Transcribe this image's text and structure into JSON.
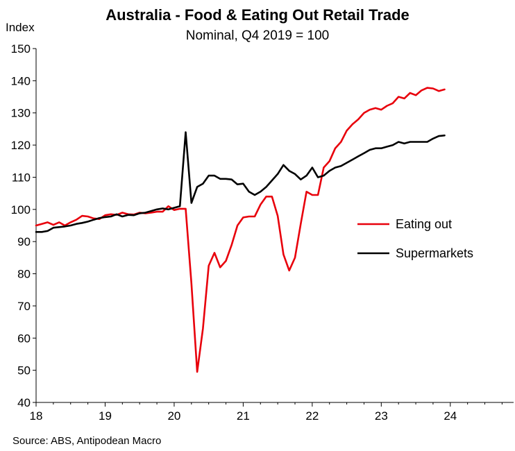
{
  "chart_data": {
    "type": "line",
    "title": "Australia - Food & Eating Out Retail Trade",
    "subtitle": "Nominal, Q4 2019 = 100",
    "ylabel": "Index",
    "xlabel": "",
    "source": "Source: ABS, Antipodean Macro",
    "ylim": [
      40,
      150
    ],
    "yticks": [
      40,
      50,
      60,
      70,
      80,
      90,
      100,
      110,
      120,
      130,
      140,
      150
    ],
    "xlim": [
      2018.0,
      2024.917
    ],
    "xticks": [
      {
        "label": "18",
        "value": 2018
      },
      {
        "label": "19",
        "value": 2019
      },
      {
        "label": "20",
        "value": 2020
      },
      {
        "label": "21",
        "value": 2021
      },
      {
        "label": "22",
        "value": 2022
      },
      {
        "label": "23",
        "value": 2023
      },
      {
        "label": "24",
        "value": 2024
      }
    ],
    "grid": false,
    "legend_position": "right-middle",
    "series": [
      {
        "name": "Eating out",
        "color": "#e8000b",
        "values": [
          95.0,
          95.5,
          96.0,
          95.2,
          96.0,
          95.0,
          96.0,
          96.8,
          98.0,
          97.8,
          97.2,
          97.0,
          98.2,
          98.5,
          98.3,
          99.0,
          98.5,
          98.4,
          99.0,
          98.8,
          99.0,
          99.3,
          99.3,
          101.0,
          99.8,
          100.2,
          100.2,
          77.0,
          49.5,
          63.0,
          82.5,
          86.5,
          82.0,
          84.0,
          89.0,
          95.0,
          97.5,
          97.8,
          97.8,
          101.5,
          104.0,
          104.0,
          98.0,
          86.0,
          81.0,
          85.0,
          95.5,
          105.5,
          104.5,
          104.5,
          113.0,
          115.0,
          119.0,
          121.0,
          124.5,
          126.5,
          128.0,
          130.0,
          131.0,
          131.5,
          131.0,
          132.2,
          133.0,
          135.0,
          134.5,
          136.2,
          135.5,
          137.0,
          137.8,
          137.6,
          136.8,
          137.3
        ]
      },
      {
        "name": "Supermarkets",
        "color": "#000000",
        "values": [
          93.0,
          93.0,
          93.3,
          94.3,
          94.5,
          94.7,
          95.0,
          95.5,
          95.8,
          96.2,
          96.8,
          97.3,
          97.6,
          97.8,
          98.5,
          97.8,
          98.3,
          98.2,
          98.8,
          99.0,
          99.5,
          100.0,
          100.3,
          100.0,
          100.5,
          101.0,
          124.0,
          102.0,
          107.0,
          108.0,
          110.5,
          110.5,
          109.5,
          109.5,
          109.3,
          107.8,
          108.0,
          105.5,
          104.5,
          105.5,
          107.0,
          109.0,
          111.0,
          113.8,
          112.0,
          111.0,
          109.3,
          110.5,
          113.0,
          110.0,
          110.5,
          112.0,
          113.0,
          113.5,
          114.5,
          115.5,
          116.5,
          117.5,
          118.5,
          119.0,
          119.0,
          119.5,
          120.0,
          121.0,
          120.5,
          121.0,
          121.0,
          121.0,
          121.0,
          122.0,
          122.8,
          123.0
        ]
      }
    ]
  }
}
